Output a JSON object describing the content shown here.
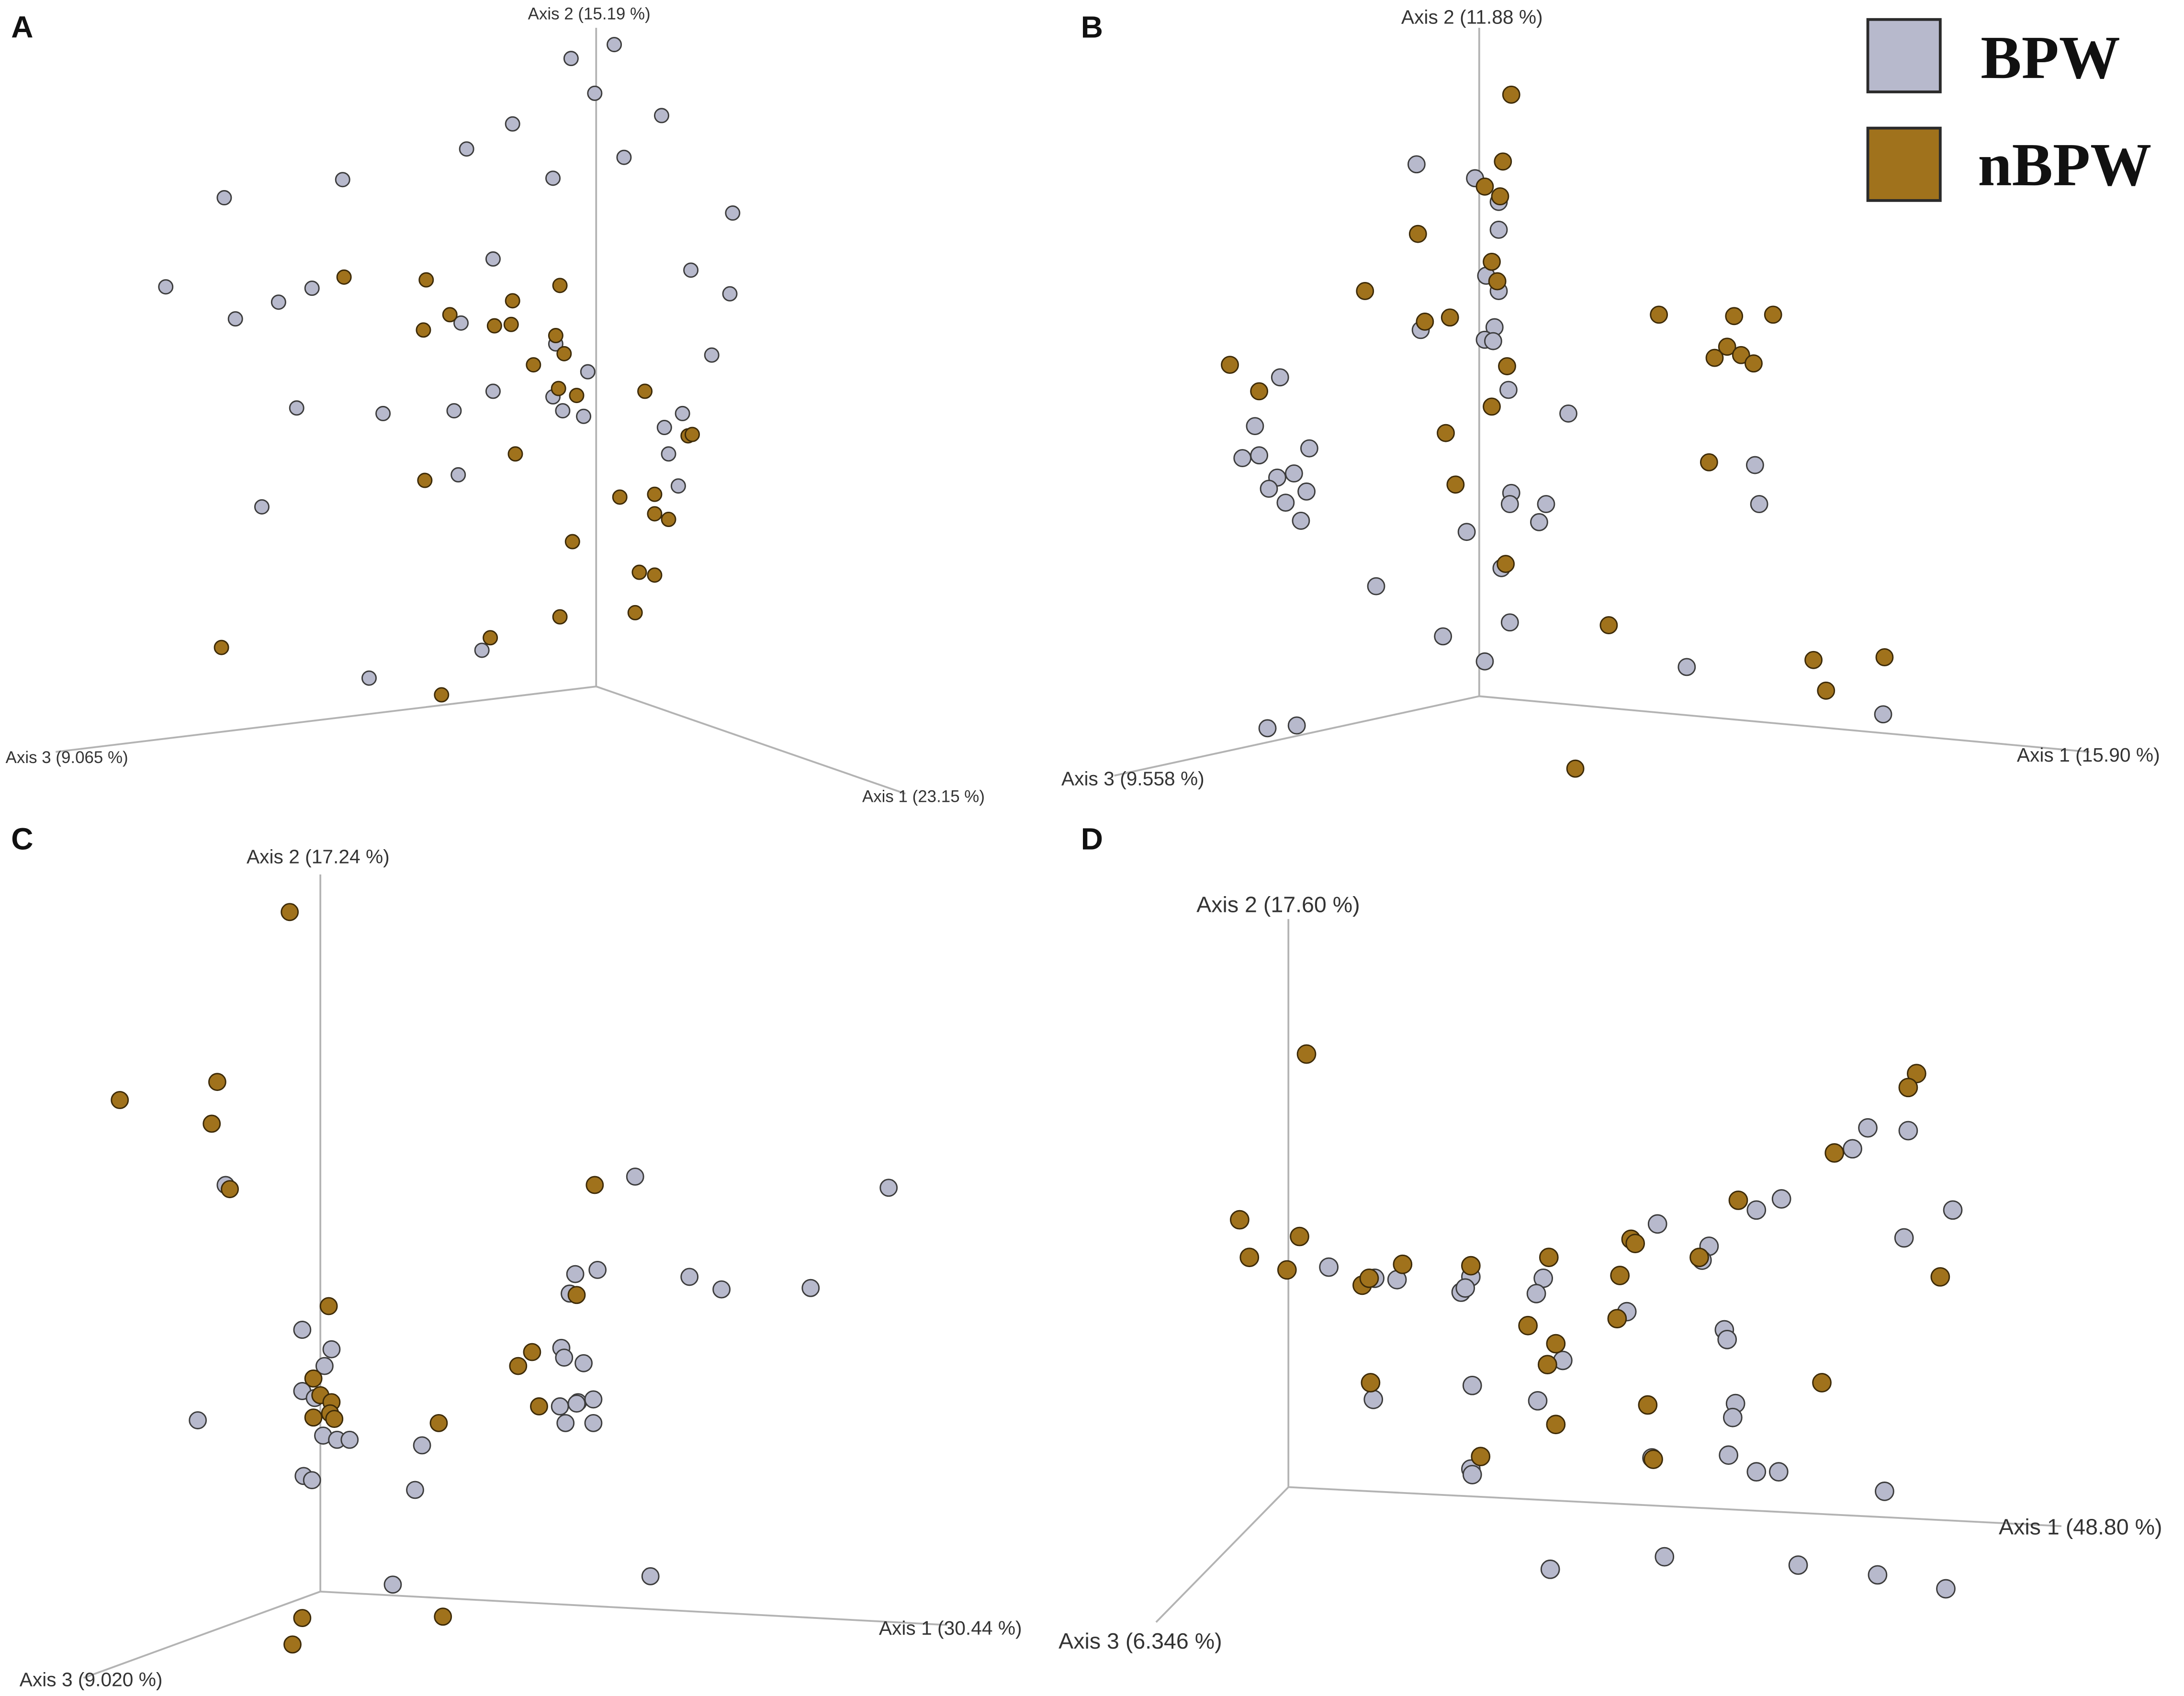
{
  "legend": {
    "items": [
      {
        "label": "BPW",
        "color": "#b7b9cc"
      },
      {
        "label": "nBPW",
        "color": "#a0721c"
      }
    ]
  },
  "chart_data": [
    {
      "type": "scatter",
      "panel": "A",
      "axes": {
        "axis1": "Axis 1 (23.15 %)",
        "axis2": "Axis 2 (15.19 %)",
        "axis3": "Axis 3 (9.065 %)"
      },
      "series": [
        {
          "name": "BPW",
          "points": [
            [
              410,
              42
            ],
            [
              441,
              32
            ],
            [
              427,
              67
            ],
            [
              475,
              83
            ],
            [
              448,
              113
            ],
            [
              368,
              89
            ],
            [
              335,
              107
            ],
            [
              397,
              128
            ],
            [
              246,
              129
            ],
            [
              161,
              142
            ],
            [
              526,
              153
            ],
            [
              119,
              206
            ],
            [
              200,
              217
            ],
            [
              224,
              207
            ],
            [
              169,
              229
            ],
            [
              354,
              186
            ],
            [
              331,
              232
            ],
            [
              496,
              194
            ],
            [
              524,
              211
            ],
            [
              511,
              255
            ],
            [
              422,
              267
            ],
            [
              399,
              247
            ],
            [
              275,
              297
            ],
            [
              326,
              295
            ],
            [
              354,
              281
            ],
            [
              213,
              293
            ],
            [
              404,
              295
            ],
            [
              419,
              299
            ],
            [
              397,
              285
            ],
            [
              490,
              297
            ],
            [
              477,
              307
            ],
            [
              480,
              326
            ],
            [
              487,
              349
            ],
            [
              329,
              341
            ],
            [
              188,
              364
            ],
            [
              346,
              467
            ],
            [
              265,
              487
            ]
          ]
        },
        {
          "name": "nBPW",
          "points": [
            [
              247,
              199
            ],
            [
              306,
              201
            ],
            [
              323,
              226
            ],
            [
              304,
              237
            ],
            [
              355,
              234
            ],
            [
              367,
              233
            ],
            [
              368,
              216
            ],
            [
              402,
              205
            ],
            [
              399,
              241
            ],
            [
              405,
              254
            ],
            [
              383,
              262
            ],
            [
              401,
              279
            ],
            [
              414,
              284
            ],
            [
              463,
              281
            ],
            [
              494,
              313
            ],
            [
              497,
              312
            ],
            [
              370,
              326
            ],
            [
              305,
              345
            ],
            [
              445,
              357
            ],
            [
              470,
              355
            ],
            [
              470,
              369
            ],
            [
              480,
              373
            ],
            [
              411,
              389
            ],
            [
              459,
              411
            ],
            [
              470,
              413
            ],
            [
              402,
              443
            ],
            [
              456,
              440
            ],
            [
              352,
              458
            ],
            [
              159,
              465
            ],
            [
              317,
              499
            ]
          ]
        }
      ]
    },
    {
      "type": "scatter",
      "panel": "B",
      "axes": {
        "axis1": "Axis 1 (15.90 %)",
        "axis2": "Axis 2 (11.88 %)",
        "axis3": "Axis 3 (9.558 %)"
      },
      "series": [
        {
          "name": "BPW",
          "points": [
            [
              1017,
              118
            ],
            [
              1059,
              128
            ],
            [
              1076,
              145
            ],
            [
              1076,
              165
            ],
            [
              1067,
              198
            ],
            [
              1076,
              209
            ],
            [
              1073,
              235
            ],
            [
              1066,
              244
            ],
            [
              1072,
              245
            ],
            [
              1020,
              237
            ],
            [
              1083,
              280
            ],
            [
              919,
              271
            ],
            [
              901,
              306
            ],
            [
              892,
              329
            ],
            [
              904,
              327
            ],
            [
              940,
              322
            ],
            [
              917,
              343
            ],
            [
              929,
              340
            ],
            [
              938,
              353
            ],
            [
              911,
              351
            ],
            [
              923,
              361
            ],
            [
              934,
              374
            ],
            [
              1126,
              297
            ],
            [
              1085,
              354
            ],
            [
              1084,
              362
            ],
            [
              1110,
              362
            ],
            [
              1105,
              375
            ],
            [
              1260,
              334
            ],
            [
              1263,
              362
            ],
            [
              1053,
              382
            ],
            [
              1078,
              408
            ],
            [
              988,
              421
            ],
            [
              1084,
              447
            ],
            [
              1036,
              457
            ],
            [
              1066,
              475
            ],
            [
              1211,
              479
            ],
            [
              1352,
              513
            ],
            [
              910,
              523
            ],
            [
              931,
              521
            ]
          ]
        },
        {
          "name": "nBPW",
          "points": [
            [
              1085,
              68
            ],
            [
              1079,
              116
            ],
            [
              1066,
              134
            ],
            [
              1077,
              141
            ],
            [
              1018,
              168
            ],
            [
              1071,
              188
            ],
            [
              1075,
              202
            ],
            [
              980,
              209
            ],
            [
              1023,
              231
            ],
            [
              1041,
              228
            ],
            [
              1191,
              226
            ],
            [
              1245,
              227
            ],
            [
              1273,
              226
            ],
            [
              1240,
              249
            ],
            [
              1231,
              257
            ],
            [
              1250,
              255
            ],
            [
              1259,
              261
            ],
            [
              1082,
              263
            ],
            [
              883,
              262
            ],
            [
              904,
              281
            ],
            [
              1071,
              292
            ],
            [
              1038,
              311
            ],
            [
              1227,
              332
            ],
            [
              1045,
              348
            ],
            [
              1081,
              405
            ],
            [
              1155,
              449
            ],
            [
              1302,
              474
            ],
            [
              1353,
              472
            ],
            [
              1311,
              496
            ],
            [
              1131,
              552
            ]
          ]
        }
      ]
    },
    {
      "type": "scatter",
      "panel": "C",
      "axes": {
        "axis1": "Axis 1 (30.44 %)",
        "axis2": "Axis 2 (17.24 %)",
        "axis3": "Axis 3 (9.020 %)"
      },
      "series": [
        {
          "name": "BPW",
          "points": [
            [
              162,
              851
            ],
            [
              456,
              845
            ],
            [
              638,
              853
            ],
            [
              429,
              912
            ],
            [
              413,
              915
            ],
            [
              495,
              917
            ],
            [
              518,
              926
            ],
            [
              582,
              925
            ],
            [
              409,
              929
            ],
            [
              403,
              968
            ],
            [
              405,
              975
            ],
            [
              419,
              979
            ],
            [
              415,
              1007
            ],
            [
              402,
              1010
            ],
            [
              426,
              1005
            ],
            [
              414,
              1008
            ],
            [
              426,
              1022
            ],
            [
              406,
              1022
            ],
            [
              238,
              969
            ],
            [
              217,
              955
            ],
            [
              233,
              981
            ],
            [
              217,
              999
            ],
            [
              226,
              1004
            ],
            [
              232,
              1031
            ],
            [
              242,
              1034
            ],
            [
              251,
              1034
            ],
            [
              142,
              1020
            ],
            [
              303,
              1038
            ],
            [
              218,
              1060
            ],
            [
              224,
              1063
            ],
            [
              298,
              1070
            ],
            [
              467,
              1132
            ],
            [
              282,
              1138
            ]
          ]
        },
        {
          "name": "nBPW",
          "points": [
            [
              208,
              655
            ],
            [
              156,
              777
            ],
            [
              86,
              790
            ],
            [
              152,
              807
            ],
            [
              165,
              854
            ],
            [
              427,
              851
            ],
            [
              414,
              930
            ],
            [
              236,
              938
            ],
            [
              382,
              971
            ],
            [
              372,
              981
            ],
            [
              225,
              990
            ],
            [
              230,
              1002
            ],
            [
              238,
              1007
            ],
            [
              237,
              1015
            ],
            [
              240,
              1019
            ],
            [
              225,
              1018
            ],
            [
              387,
              1010
            ],
            [
              315,
              1022
            ],
            [
              217,
              1162
            ],
            [
              210,
              1181
            ],
            [
              318,
              1161
            ]
          ]
        }
      ]
    },
    {
      "type": "scatter",
      "panel": "D",
      "axes": {
        "axis1": "Axis 1 (48.80 %)",
        "axis2": "Axis 2 (17.60 %)",
        "axis3": "Axis 3 (6.346 %)"
      },
      "series": [
        {
          "name": "BPW",
          "points": [
            [
              1341,
              810
            ],
            [
              1370,
              812
            ],
            [
              1330,
              825
            ],
            [
              1279,
              861
            ],
            [
              1261,
              869
            ],
            [
              1190,
              879
            ],
            [
              1227,
              895
            ],
            [
              1222,
              905
            ],
            [
              1367,
              889
            ],
            [
              1402,
              869
            ],
            [
              954,
              910
            ],
            [
              1003,
              919
            ],
            [
              987,
              918
            ],
            [
              1056,
              917
            ],
            [
              1049,
              928
            ],
            [
              1108,
              918
            ],
            [
              1103,
              929
            ],
            [
              1052,
              925
            ],
            [
              1168,
              942
            ],
            [
              1122,
              977
            ],
            [
              1238,
              955
            ],
            [
              1240,
              962
            ],
            [
              1057,
              995
            ],
            [
              986,
              1005
            ],
            [
              1104,
              1006
            ],
            [
              1246,
              1008
            ],
            [
              1244,
              1018
            ],
            [
              1186,
              1047
            ],
            [
              1241,
              1045
            ],
            [
              1261,
              1057
            ],
            [
              1277,
              1057
            ],
            [
              1056,
              1055
            ],
            [
              1057,
              1059
            ],
            [
              1353,
              1071
            ],
            [
              1195,
              1118
            ],
            [
              1113,
              1127
            ],
            [
              1291,
              1124
            ],
            [
              1348,
              1131
            ],
            [
              1397,
              1141
            ]
          ]
        },
        {
          "name": "nBPW",
          "points": [
            [
              938,
              757
            ],
            [
              1376,
              771
            ],
            [
              1370,
              781
            ],
            [
              1317,
              828
            ],
            [
              1248,
              862
            ],
            [
              890,
              876
            ],
            [
              933,
              888
            ],
            [
              897,
              903
            ],
            [
              924,
              912
            ],
            [
              1171,
              890
            ],
            [
              1174,
              893
            ],
            [
              1220,
              903
            ],
            [
              1007,
              908
            ],
            [
              1056,
              909
            ],
            [
              1112,
              903
            ],
            [
              978,
              923
            ],
            [
              983,
              918
            ],
            [
              1163,
              916
            ],
            [
              1161,
              947
            ],
            [
              1097,
              952
            ],
            [
              1117,
              965
            ],
            [
              1111,
              980
            ],
            [
              1393,
              917
            ],
            [
              984,
              993
            ],
            [
              1308,
              993
            ],
            [
              1183,
              1009
            ],
            [
              1117,
              1023
            ],
            [
              1063,
              1046
            ],
            [
              1187,
              1048
            ]
          ]
        }
      ]
    }
  ]
}
